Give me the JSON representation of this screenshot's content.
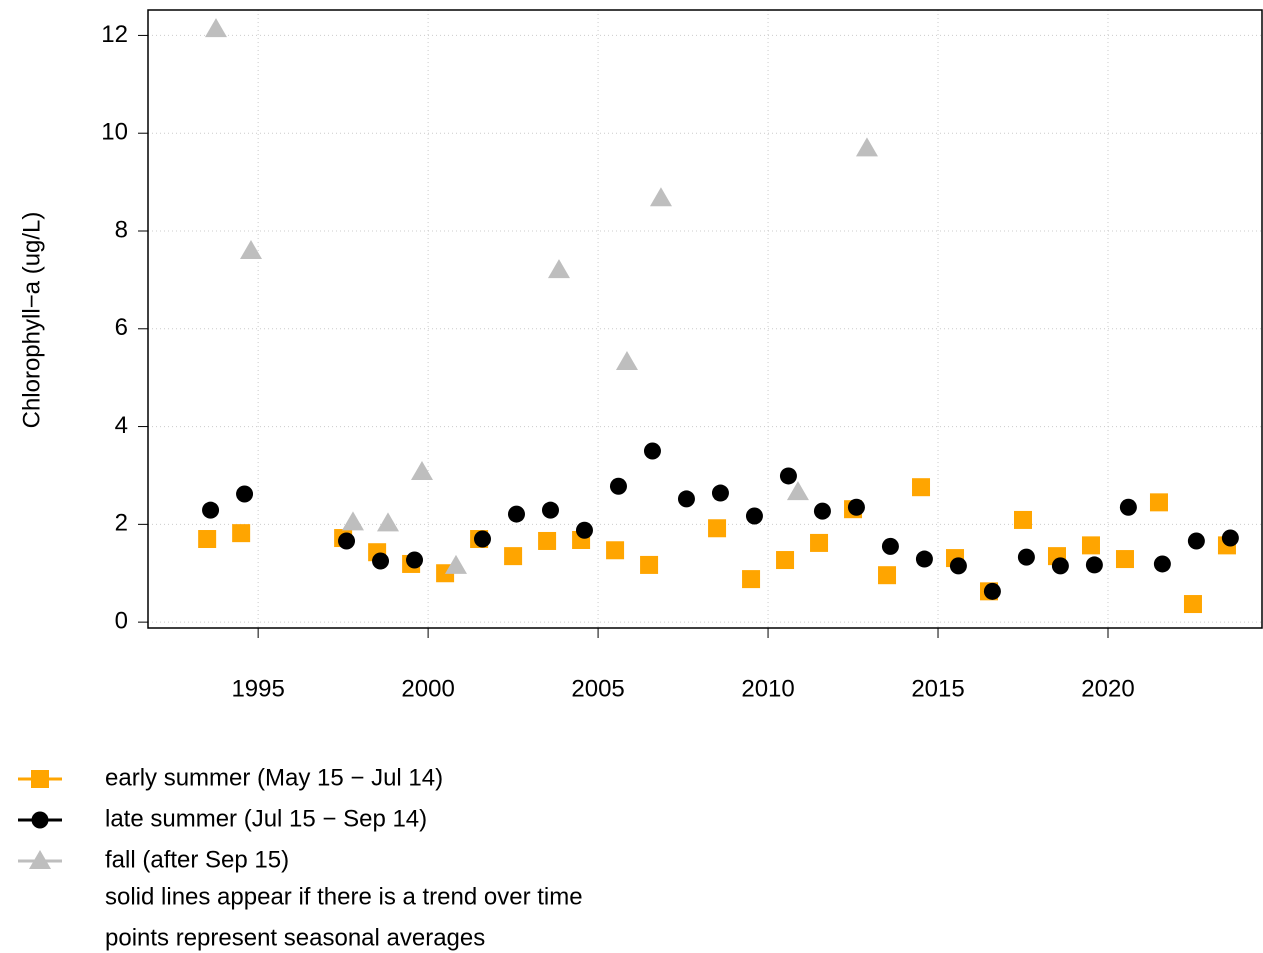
{
  "chart_data": {
    "type": "scatter",
    "y_label": "Chlorophyll−a (ug/L)",
    "xlim": [
      1991.76,
      2024.56
    ],
    "ylim": [
      -0.12,
      12.52
    ],
    "xticks": [
      1995,
      2000,
      2005,
      2010,
      2015,
      2020
    ],
    "yticks": [
      0,
      2,
      4,
      6,
      8,
      10,
      12
    ],
    "grid": true,
    "series": [
      {
        "name": "early summer (May 15 − Jul 14)",
        "color": "#FFA500",
        "marker": "square",
        "x": [
          1993.5,
          1994.5,
          1997.5,
          1998.5,
          1999.5,
          2000.5,
          2001.5,
          2002.5,
          2003.5,
          2004.5,
          2005.5,
          2006.5,
          2008.5,
          2009.5,
          2010.5,
          2011.5,
          2012.5,
          2013.5,
          2014.5,
          2015.5,
          2016.5,
          2017.5,
          2018.5,
          2019.5,
          2020.5,
          2021.5,
          2022.5,
          2023.5
        ],
        "values": [
          1.7,
          1.82,
          1.72,
          1.43,
          1.19,
          1.0,
          1.7,
          1.35,
          1.66,
          1.68,
          1.47,
          1.17,
          1.92,
          0.88,
          1.27,
          1.62,
          2.31,
          0.96,
          2.76,
          1.31,
          0.63,
          2.09,
          1.35,
          1.57,
          1.29,
          2.45,
          0.37,
          1.57
        ]
      },
      {
        "name": "late summer (Jul 15 − Sep 14)",
        "color": "#000000",
        "marker": "circle",
        "x": [
          1993.6,
          1994.6,
          1997.6,
          1998.6,
          1999.6,
          2001.6,
          2002.6,
          2003.6,
          2004.6,
          2005.6,
          2006.6,
          2007.6,
          2008.6,
          2009.6,
          2010.6,
          2011.6,
          2012.6,
          2013.6,
          2014.6,
          2015.6,
          2016.6,
          2017.6,
          2018.6,
          2019.6,
          2020.6,
          2021.6,
          2022.6,
          2023.6
        ],
        "values": [
          2.29,
          2.62,
          1.66,
          1.25,
          1.27,
          1.7,
          2.21,
          2.29,
          1.88,
          2.78,
          3.5,
          2.52,
          2.64,
          2.17,
          2.99,
          2.27,
          2.35,
          1.55,
          1.29,
          1.15,
          0.63,
          1.33,
          1.15,
          1.17,
          2.35,
          1.19,
          1.66,
          1.72
        ]
      },
      {
        "name": "fall (after Sep 15)",
        "color": "#BEBEBE",
        "marker": "triangle",
        "x": [
          1993.76,
          1994.79,
          1997.79,
          1998.82,
          1999.82,
          2000.82,
          2003.85,
          2005.85,
          2006.85,
          2010.88,
          2012.91
        ],
        "values": [
          12.13,
          7.59,
          2.04,
          2.02,
          3.07,
          1.15,
          7.2,
          5.32,
          8.67,
          2.66,
          9.69
        ]
      }
    ],
    "legend_notes": [
      "solid lines appear if there is a trend over time",
      "points represent seasonal averages"
    ]
  }
}
